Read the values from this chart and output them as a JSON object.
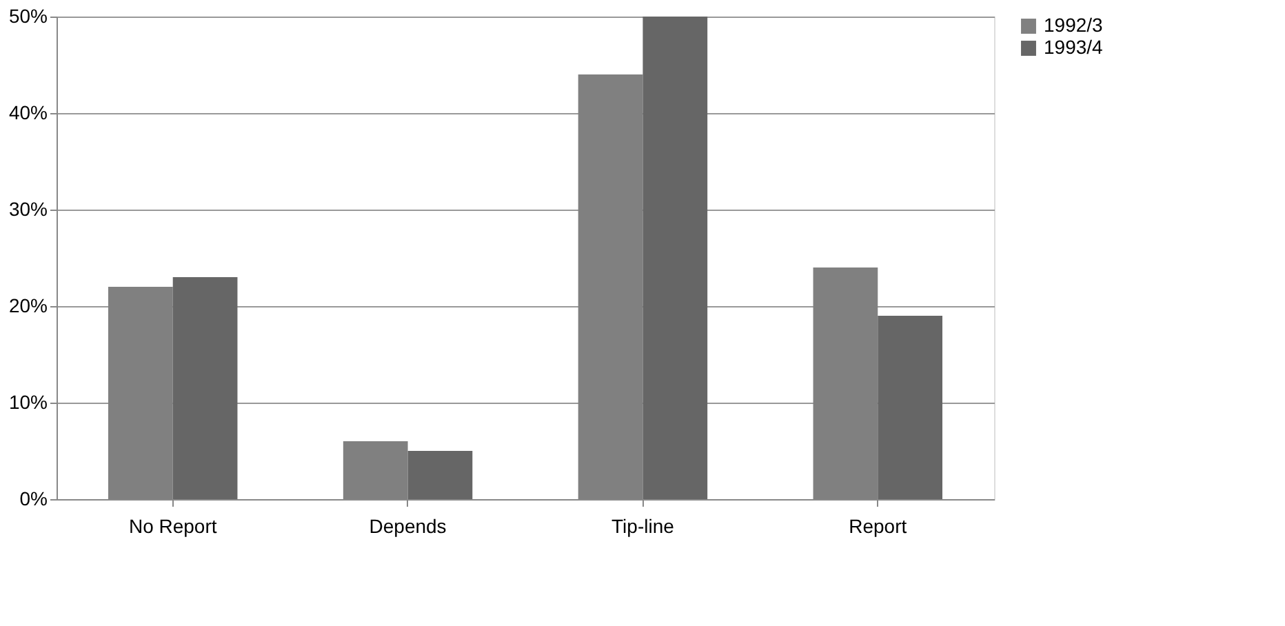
{
  "chart_data": {
    "type": "bar",
    "categories": [
      "No Report",
      "Depends",
      "Tip-line",
      "Report"
    ],
    "series": [
      {
        "name": "1992/3",
        "color": "#808080",
        "values": [
          22,
          6,
          44,
          24
        ]
      },
      {
        "name": "1993/4",
        "color": "#666666",
        "values": [
          23,
          5,
          50,
          19
        ]
      }
    ],
    "ylim": [
      0,
      50
    ],
    "yticks": [
      {
        "value": 0,
        "label": "0%"
      },
      {
        "value": 10,
        "label": "10%"
      },
      {
        "value": 20,
        "label": "20%"
      },
      {
        "value": 30,
        "label": "30%"
      },
      {
        "value": 40,
        "label": "40%"
      },
      {
        "value": 50,
        "label": "50%"
      }
    ],
    "grid": "y",
    "legend": "right"
  }
}
